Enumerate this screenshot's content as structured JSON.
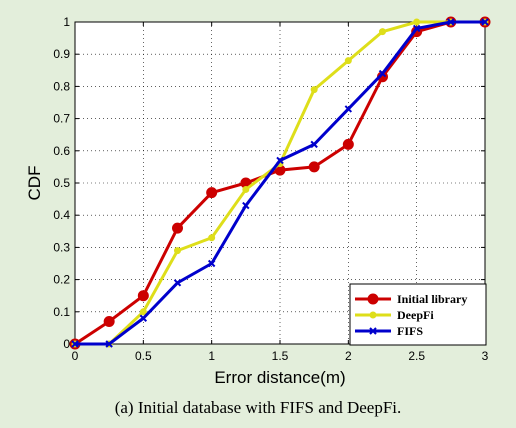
{
  "chart_data": {
    "type": "line",
    "title": "",
    "xlabel": "Error distance(m)",
    "ylabel": "CDF",
    "xlim": [
      0,
      3
    ],
    "ylim": [
      0,
      1
    ],
    "xticks": [
      "0",
      "0.5",
      "1",
      "1.5",
      "2",
      "2.5",
      "3"
    ],
    "yticks": [
      "0",
      "0.1",
      "0.2",
      "0.3",
      "0.4",
      "0.5",
      "0.6",
      "0.7",
      "0.8",
      "0.9",
      "1"
    ],
    "grid": true,
    "legend_position": "bottom-right",
    "series": [
      {
        "name": "Initial library",
        "color": "#cc0000",
        "marker": "circle",
        "x": [
          0,
          0.25,
          0.5,
          0.75,
          1.0,
          1.25,
          1.5,
          1.75,
          2.0,
          2.25,
          2.5,
          2.75,
          3.0
        ],
        "y": [
          0,
          0.07,
          0.15,
          0.36,
          0.47,
          0.5,
          0.54,
          0.55,
          0.62,
          0.83,
          0.97,
          1.0,
          1.0
        ]
      },
      {
        "name": "DeepFi",
        "color": "#dede1a",
        "marker": "dot",
        "x": [
          0,
          0.25,
          0.5,
          0.75,
          1.0,
          1.25,
          1.5,
          1.75,
          2.0,
          2.25,
          2.5,
          2.75,
          3.0
        ],
        "y": [
          0,
          0,
          0.1,
          0.29,
          0.33,
          0.48,
          0.56,
          0.79,
          0.88,
          0.97,
          1.0,
          1.0,
          1.0
        ]
      },
      {
        "name": "FIFS",
        "color": "#0000cc",
        "marker": "x",
        "x": [
          0,
          0.25,
          0.5,
          0.75,
          1.0,
          1.25,
          1.5,
          1.75,
          2.0,
          2.25,
          2.5,
          2.75,
          3.0
        ],
        "y": [
          0,
          0,
          0.08,
          0.19,
          0.25,
          0.43,
          0.57,
          0.62,
          0.73,
          0.84,
          0.98,
          1.0,
          1.0
        ]
      }
    ]
  },
  "caption": "(a) Initial database with FIFS and DeepFi."
}
